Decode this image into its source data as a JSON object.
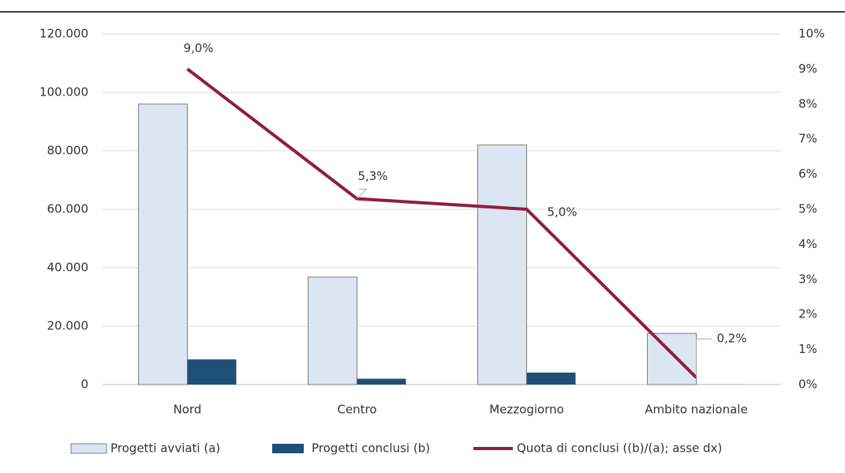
{
  "chart_data": {
    "type": "bar-line",
    "categories": [
      "Nord",
      "Centro",
      "Mezzogiorno",
      "Ambito nazionale"
    ],
    "series": [
      {
        "name": "Progetti avviati (a)",
        "color": "#dce6f2",
        "type": "bar",
        "values": [
          96000,
          36800,
          82000,
          17500
        ]
      },
      {
        "name": "Progetti conclusi (b)",
        "color": "#1f4e79",
        "type": "bar",
        "values": [
          8600,
          2000,
          4100,
          35
        ]
      },
      {
        "name": "Quota di conclusi ((b)/(a); asse dx)",
        "color": "#8e1e3f",
        "type": "line",
        "axis": "y2",
        "values": [
          9.0,
          5.3,
          5.0,
          0.2
        ],
        "value_labels": [
          "9,0%",
          "5,3%",
          "5,0%",
          "0,2%"
        ]
      }
    ],
    "ylim": [
      0,
      120000
    ],
    "yticks": [
      0,
      {
        "value": 20000,
        "label": "20.000"
      },
      {
        "value": 40000,
        "label": "40.000"
      },
      {
        "value": 60000,
        "label": "60.000"
      },
      {
        "value": 80000,
        "label": "80.000"
      },
      {
        "value": 100000,
        "label": "100.000"
      },
      {
        "value": 120000,
        "label": "120.000"
      }
    ],
    "y2lim": [
      0,
      10
    ],
    "y2ticks": [
      {
        "value": 0,
        "label": "0%"
      },
      {
        "value": 1,
        "label": "1%"
      },
      {
        "value": 2,
        "label": "2%"
      },
      {
        "value": 3,
        "label": "3%"
      },
      {
        "value": 4,
        "label": "4%"
      },
      {
        "value": 5,
        "label": "5%"
      },
      {
        "value": 6,
        "label": "6%"
      },
      {
        "value": 7,
        "label": "7%"
      },
      {
        "value": 8,
        "label": "8%"
      },
      {
        "value": 9,
        "label": "9%"
      },
      {
        "value": 10,
        "label": "10%"
      }
    ],
    "grid": true,
    "legend": "bottom"
  }
}
